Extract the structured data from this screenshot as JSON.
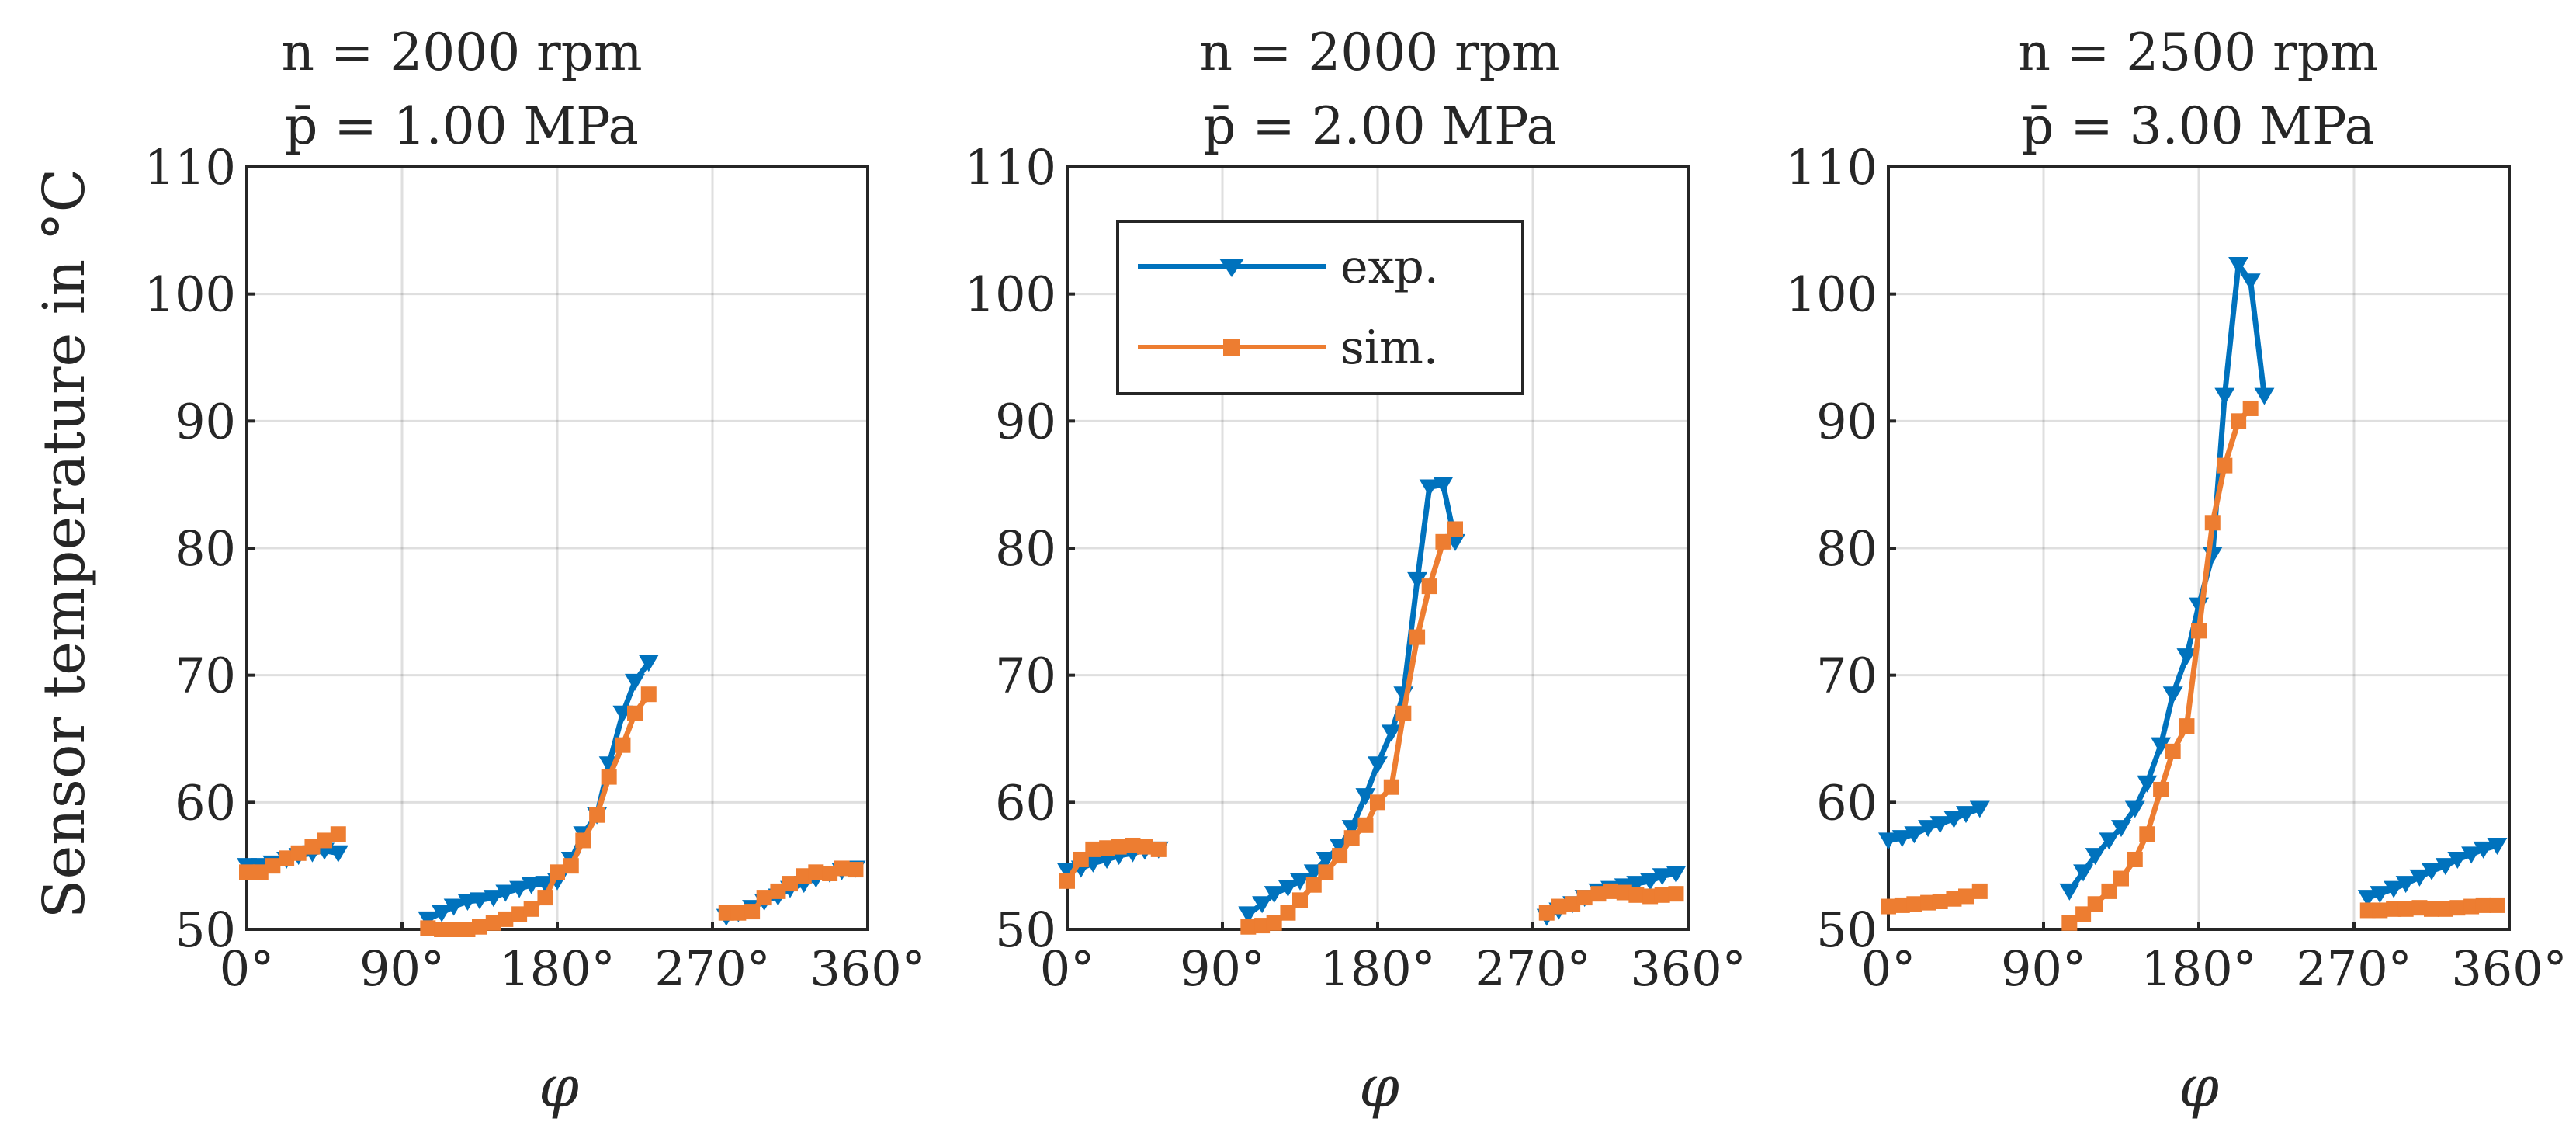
{
  "chart_data": [
    {
      "type": "line",
      "title_line1": "n = 2000 rpm",
      "title_line2": "p̄ = 1.00 MPa",
      "xlabel": "φ",
      "ylabel": "Sensor temperature in °C",
      "xlim": [
        0,
        360
      ],
      "ylim": [
        50,
        110
      ],
      "xticks": [
        0,
        90,
        180,
        270,
        360
      ],
      "xtick_labels": [
        "0°",
        "90°",
        "180°",
        "270°",
        "360°"
      ],
      "yticks": [
        50,
        60,
        70,
        80,
        90,
        100,
        110
      ],
      "ytick_labels": [
        "50",
        "60",
        "70",
        "80",
        "90",
        "100",
        "110"
      ],
      "grid": true,
      "series": [
        {
          "name": "exp.",
          "color": "#0072BD",
          "marker": "triangle-down",
          "segments": [
            [
              [
                0,
                55
              ],
              [
                8,
                55
              ],
              [
                15,
                55.2
              ],
              [
                23,
                55.5
              ],
              [
                30,
                55.8
              ],
              [
                38,
                56
              ],
              [
                45,
                56.2
              ],
              [
                53,
                56
              ]
            ],
            [
              [
                105,
                50.8
              ],
              [
                113,
                51.3
              ],
              [
                120,
                51.8
              ],
              [
                128,
                52.2
              ],
              [
                135,
                52.3
              ],
              [
                143,
                52.5
              ],
              [
                150,
                52.9
              ],
              [
                158,
                53.2
              ],
              [
                165,
                53.5
              ],
              [
                173,
                53.6
              ],
              [
                180,
                53.8
              ],
              [
                188,
                55.5
              ],
              [
                195,
                57.5
              ],
              [
                203,
                59
              ],
              [
                210,
                63
              ],
              [
                218,
                67
              ],
              [
                225,
                69.5
              ],
              [
                233,
                71
              ]
            ],
            [
              [
                278,
                51
              ],
              [
                285,
                51.3
              ],
              [
                293,
                51.7
              ],
              [
                300,
                52.2
              ],
              [
                308,
                52.6
              ],
              [
                315,
                53.2
              ],
              [
                323,
                53.6
              ],
              [
                330,
                54
              ],
              [
                338,
                54.4
              ],
              [
                345,
                54.6
              ],
              [
                353,
                54.8
              ]
            ]
          ]
        },
        {
          "name": "sim.",
          "color": "#ED7D31",
          "marker": "square",
          "segments": [
            [
              [
                0,
                54.5
              ],
              [
                8,
                54.5
              ],
              [
                15,
                55
              ],
              [
                23,
                55.6
              ],
              [
                30,
                56
              ],
              [
                38,
                56.5
              ],
              [
                45,
                57
              ],
              [
                53,
                57.5
              ]
            ],
            [
              [
                105,
                50.1
              ],
              [
                113,
                50
              ],
              [
                120,
                50
              ],
              [
                128,
                50
              ],
              [
                135,
                50.2
              ],
              [
                143,
                50.5
              ],
              [
                150,
                50.8
              ],
              [
                158,
                51.2
              ],
              [
                165,
                51.6
              ],
              [
                173,
                52.5
              ],
              [
                180,
                54.5
              ],
              [
                188,
                55
              ],
              [
                195,
                57
              ],
              [
                203,
                59
              ],
              [
                210,
                62
              ],
              [
                218,
                64.5
              ],
              [
                225,
                67
              ],
              [
                233,
                68.5
              ]
            ],
            [
              [
                278,
                51.3
              ],
              [
                285,
                51.3
              ],
              [
                293,
                51.4
              ],
              [
                300,
                52.5
              ],
              [
                308,
                53
              ],
              [
                315,
                53.6
              ],
              [
                323,
                54.2
              ],
              [
                330,
                54.5
              ],
              [
                338,
                54.4
              ],
              [
                345,
                54.8
              ],
              [
                353,
                54.7
              ]
            ]
          ]
        }
      ]
    },
    {
      "type": "line",
      "title_line1": "n = 2000 rpm",
      "title_line2": "p̄ = 2.00 MPa",
      "xlabel": "φ",
      "ylabel": "",
      "xlim": [
        0,
        360
      ],
      "ylim": [
        50,
        110
      ],
      "xticks": [
        0,
        90,
        180,
        270,
        360
      ],
      "xtick_labels": [
        "0°",
        "90°",
        "180°",
        "270°",
        "360°"
      ],
      "yticks": [
        50,
        60,
        70,
        80,
        90,
        100,
        110
      ],
      "ytick_labels": [
        "50",
        "60",
        "70",
        "80",
        "90",
        "100",
        "110"
      ],
      "grid": true,
      "legend": {
        "location": "top-left",
        "entries": [
          "exp.",
          "sim."
        ]
      },
      "series": [
        {
          "name": "exp.",
          "color": "#0072BD",
          "marker": "triangle-down",
          "segments": [
            [
              [
                0,
                54.6
              ],
              [
                8,
                54.8
              ],
              [
                15,
                55.2
              ],
              [
                23,
                55.5
              ],
              [
                30,
                55.8
              ],
              [
                38,
                56
              ],
              [
                45,
                56.2
              ],
              [
                53,
                56.3
              ]
            ],
            [
              [
                105,
                51.2
              ],
              [
                113,
                52
              ],
              [
                120,
                52.8
              ],
              [
                128,
                53.3
              ],
              [
                135,
                53.8
              ],
              [
                143,
                54.5
              ],
              [
                150,
                55.5
              ],
              [
                158,
                56.5
              ],
              [
                165,
                58
              ],
              [
                173,
                60.5
              ],
              [
                180,
                63
              ],
              [
                188,
                65.5
              ],
              [
                195,
                68.5
              ],
              [
                203,
                77.5
              ],
              [
                210,
                84.8
              ],
              [
                218,
                85
              ],
              [
                225,
                80.5
              ]
            ],
            [
              [
                278,
                51
              ],
              [
                285,
                51.5
              ],
              [
                293,
                52
              ],
              [
                300,
                52.5
              ],
              [
                308,
                53
              ],
              [
                315,
                53.2
              ],
              [
                323,
                53.4
              ],
              [
                330,
                53.6
              ],
              [
                338,
                53.8
              ],
              [
                345,
                54.2
              ],
              [
                353,
                54.4
              ]
            ]
          ]
        },
        {
          "name": "sim.",
          "color": "#ED7D31",
          "marker": "square",
          "segments": [
            [
              [
                0,
                53.8
              ],
              [
                8,
                55.5
              ],
              [
                15,
                56.3
              ],
              [
                23,
                56.4
              ],
              [
                30,
                56.5
              ],
              [
                38,
                56.6
              ],
              [
                45,
                56.5
              ],
              [
                53,
                56.3
              ]
            ],
            [
              [
                105,
                50.2
              ],
              [
                113,
                50.3
              ],
              [
                120,
                50.5
              ],
              [
                128,
                51.3
              ],
              [
                135,
                52.3
              ],
              [
                143,
                53.5
              ],
              [
                150,
                54.5
              ],
              [
                158,
                55.8
              ],
              [
                165,
                57.2
              ],
              [
                173,
                58.2
              ],
              [
                180,
                60
              ],
              [
                188,
                61.2
              ],
              [
                195,
                67
              ],
              [
                203,
                73
              ],
              [
                210,
                77
              ],
              [
                218,
                80.5
              ],
              [
                225,
                81.5
              ]
            ],
            [
              [
                278,
                51.3
              ],
              [
                285,
                51.8
              ],
              [
                293,
                52
              ],
              [
                300,
                52.5
              ],
              [
                308,
                52.8
              ],
              [
                315,
                53
              ],
              [
                323,
                52.9
              ],
              [
                330,
                52.7
              ],
              [
                338,
                52.6
              ],
              [
                345,
                52.7
              ],
              [
                353,
                52.8
              ]
            ]
          ]
        }
      ]
    },
    {
      "type": "line",
      "title_line1": "n = 2500 rpm",
      "title_line2": "p̄ = 3.00 MPa",
      "xlabel": "φ",
      "ylabel": "",
      "xlim": [
        0,
        360
      ],
      "ylim": [
        50,
        110
      ],
      "xticks": [
        0,
        90,
        180,
        270,
        360
      ],
      "xtick_labels": [
        "0°",
        "90°",
        "180°",
        "270°",
        "360°"
      ],
      "yticks": [
        50,
        60,
        70,
        80,
        90,
        100,
        110
      ],
      "ytick_labels": [
        "50",
        "60",
        "70",
        "80",
        "90",
        "100",
        "110"
      ],
      "grid": true,
      "series": [
        {
          "name": "exp.",
          "color": "#0072BD",
          "marker": "triangle-down",
          "segments": [
            [
              [
                0,
                57
              ],
              [
                8,
                57.2
              ],
              [
                15,
                57.5
              ],
              [
                23,
                58
              ],
              [
                30,
                58.3
              ],
              [
                38,
                58.7
              ],
              [
                45,
                59.1
              ],
              [
                53,
                59.5
              ]
            ],
            [
              [
                105,
                53
              ],
              [
                113,
                54.5
              ],
              [
                120,
                55.8
              ],
              [
                128,
                57
              ],
              [
                135,
                58
              ],
              [
                143,
                59.5
              ],
              [
                150,
                61.5
              ],
              [
                158,
                64.5
              ],
              [
                165,
                68.5
              ],
              [
                173,
                71.5
              ],
              [
                180,
                75.5
              ],
              [
                188,
                79.5
              ],
              [
                195,
                92
              ],
              [
                203,
                102.3
              ],
              [
                210,
                101
              ],
              [
                218,
                92
              ]
            ],
            [
              [
                278,
                52.5
              ],
              [
                285,
                52.8
              ],
              [
                293,
                53.2
              ],
              [
                300,
                53.6
              ],
              [
                308,
                54.1
              ],
              [
                315,
                54.6
              ],
              [
                323,
                55
              ],
              [
                330,
                55.5
              ],
              [
                338,
                55.9
              ],
              [
                345,
                56.3
              ],
              [
                353,
                56.6
              ]
            ]
          ]
        },
        {
          "name": "sim.",
          "color": "#ED7D31",
          "marker": "square",
          "segments": [
            [
              [
                0,
                51.8
              ],
              [
                8,
                51.9
              ],
              [
                15,
                52
              ],
              [
                23,
                52.1
              ],
              [
                30,
                52.2
              ],
              [
                38,
                52.4
              ],
              [
                45,
                52.6
              ],
              [
                53,
                53
              ]
            ],
            [
              [
                105,
                50.5
              ],
              [
                113,
                51.2
              ],
              [
                120,
                52
              ],
              [
                128,
                53
              ],
              [
                135,
                54
              ],
              [
                143,
                55.5
              ],
              [
                150,
                57.5
              ],
              [
                158,
                61
              ],
              [
                165,
                64
              ],
              [
                173,
                66
              ],
              [
                180,
                73.5
              ],
              [
                188,
                82
              ],
              [
                195,
                86.5
              ],
              [
                203,
                90
              ],
              [
                210,
                91
              ]
            ],
            [
              [
                278,
                51.5
              ],
              [
                285,
                51.5
              ],
              [
                293,
                51.6
              ],
              [
                300,
                51.6
              ],
              [
                308,
                51.7
              ],
              [
                315,
                51.6
              ],
              [
                323,
                51.6
              ],
              [
                330,
                51.7
              ],
              [
                338,
                51.8
              ],
              [
                345,
                51.9
              ],
              [
                353,
                51.9
              ]
            ]
          ]
        }
      ]
    }
  ]
}
